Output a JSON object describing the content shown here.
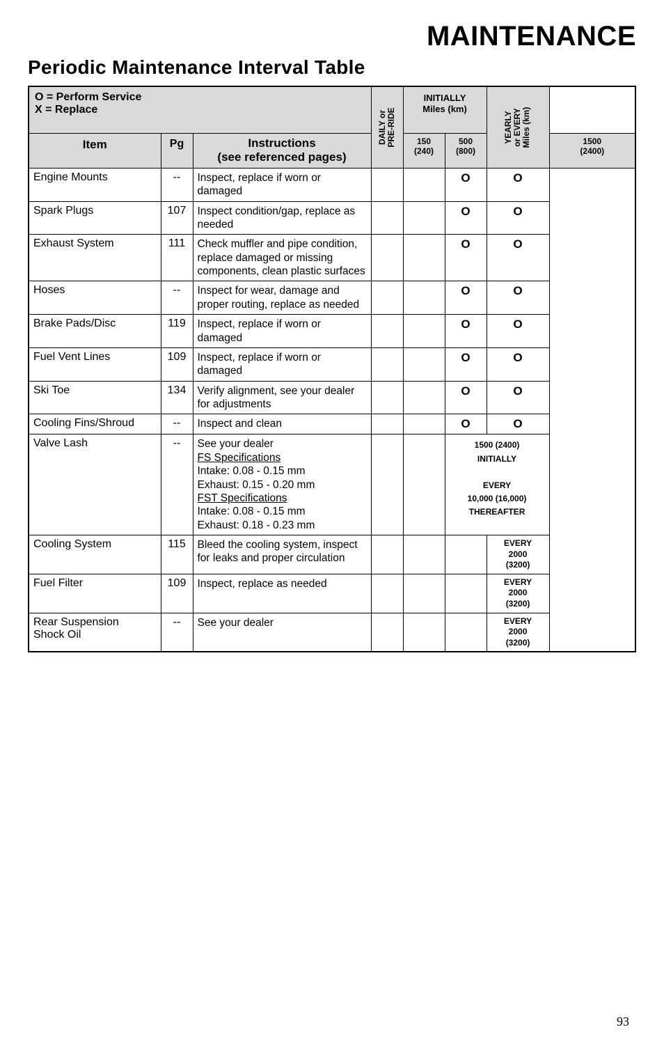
{
  "titles": {
    "main": "MAINTENANCE",
    "sub": "Periodic Maintenance Interval Table"
  },
  "header": {
    "legend_line1": "O = Perform Service",
    "legend_line2": "X = Replace",
    "daily": "DAILY or\nPRE-RIDE",
    "initially_line1": "INITIALLY",
    "initially_line2": "Miles (km)",
    "yearly": "YEARLY\nor EVERY\nMiles (km)",
    "col_item": "Item",
    "col_pg": "Pg",
    "col_instr_line1": "Instructions",
    "col_instr_line2": "(see referenced pages)",
    "col_150_line1": "150",
    "col_150_line2": "(240)",
    "col_500_line1": "500",
    "col_500_line2": "(800)",
    "col_1500_line1": "1500",
    "col_1500_line2": "(2400)"
  },
  "rows": {
    "engine_mounts": {
      "item": "Engine Mounts",
      "pg": "--",
      "instr": "Inspect, replace if worn or damaged",
      "c500": "O",
      "cyearly": "O"
    },
    "spark_plugs": {
      "item": "Spark Plugs",
      "pg": "107",
      "instr": "Inspect condition/gap, replace as needed",
      "c500": "O",
      "cyearly": "O"
    },
    "exhaust": {
      "item": "Exhaust System",
      "pg": "111",
      "instr": "Check muffler and pipe condition, replace damaged or missing components, clean plastic surfaces",
      "c500": "O",
      "cyearly": "O"
    },
    "hoses": {
      "item": "Hoses",
      "pg": "--",
      "instr": "Inspect for wear, damage and proper routing, replace as needed",
      "c500": "O",
      "cyearly": "O"
    },
    "brake": {
      "item": "Brake Pads/Disc",
      "pg": "119",
      "instr": "Inspect, replace if worn or damaged",
      "c500": "O",
      "cyearly": "O"
    },
    "fuel_vent": {
      "item": "Fuel Vent Lines",
      "pg": "109",
      "instr": "Inspect, replace if worn or damaged",
      "c500": "O",
      "cyearly": "O"
    },
    "ski_toe": {
      "item": "Ski Toe",
      "pg": "134",
      "instr": "Verify alignment, see your dealer for adjustments",
      "c500": "O",
      "cyearly": "O"
    },
    "cooling_fins": {
      "item": "Cooling Fins/Shroud",
      "pg": "--",
      "instr": "Inspect and clean",
      "c500": "O",
      "cyearly": "O"
    },
    "valve_lash": {
      "item": "Valve Lash",
      "pg": "--",
      "l1": "See your dealer",
      "l2": "FS Specifications",
      "l3": "Intake: 0.08 - 0.15 mm",
      "l4": "Exhaust: 0.15 - 0.20 mm",
      "l5": "FST Specifications",
      "l6": "Intake: 0.08 - 0.15 mm",
      "l7": "Exhaust: 0.18 - 0.23 mm",
      "r1": "1500 (2400)",
      "r2": "INITIALLY",
      "r3": "EVERY",
      "r4": "10,000 (16,000)",
      "r5": "THEREAFTER"
    },
    "cooling_system": {
      "item": "Cooling System",
      "pg": "115",
      "instr": "Bleed the cooling system, inspect for leaks and proper circulation",
      "yearly_l1": "EVERY",
      "yearly_l2": "2000",
      "yearly_l3": "(3200)"
    },
    "fuel_filter": {
      "item": "Fuel Filter",
      "pg": "109",
      "instr": "Inspect, replace as needed",
      "yearly_l1": "EVERY",
      "yearly_l2": "2000",
      "yearly_l3": "(3200)"
    },
    "rear_susp": {
      "item_l1": "Rear Suspension",
      "item_l2": "Shock Oil",
      "pg": "--",
      "instr": "See your dealer",
      "yearly_l1": "EVERY",
      "yearly_l2": "2000",
      "yearly_l3": "(3200)"
    }
  },
  "page_number": "93"
}
